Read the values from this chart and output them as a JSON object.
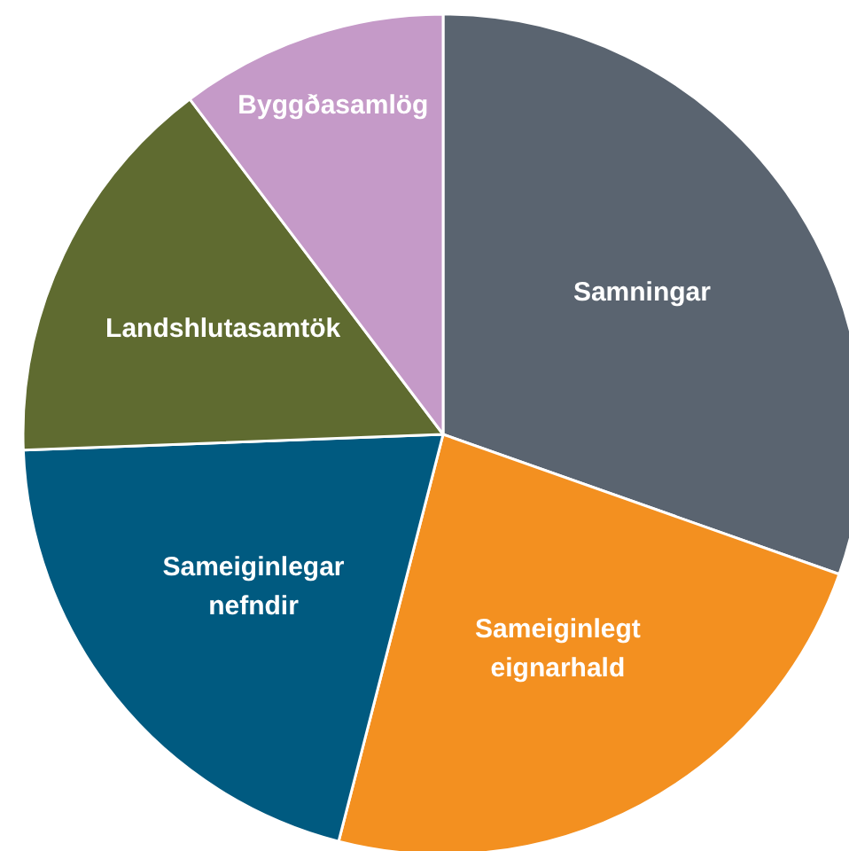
{
  "chart_data": {
    "type": "pie",
    "categories": [
      "Samningar",
      "Sameiginlegt eignarhald",
      "Sameiginlegar nefndir",
      "Landshlutasamtök",
      "Byggðasamlög"
    ],
    "values": [
      30.4,
      23.6,
      20.4,
      15.3,
      10.3
    ],
    "colors": [
      "#5a6470",
      "#f39020",
      "#005a80",
      "#5f6b30",
      "#c59ac8"
    ]
  }
}
